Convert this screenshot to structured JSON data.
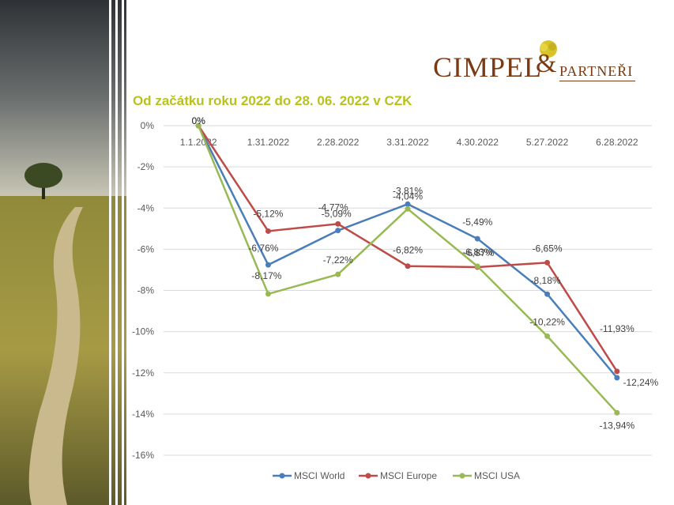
{
  "logo": {
    "brand": "CIMPEL",
    "amp": "&",
    "partners": "PARTNEŘI"
  },
  "colors": {
    "world": "#4a7ebb",
    "europe": "#be4b48",
    "usa": "#98b954",
    "title": "#b7c21b",
    "grid": "#d9d9d9",
    "brand": "#7a3b14"
  },
  "chart_data": {
    "type": "line",
    "title": "Od začátku roku 2022 do 28. 06. 2022 v CZK",
    "categories": [
      "1.1.2022",
      "1.31.2022",
      "2.28.2022",
      "3.31.2022",
      "4.30.2022",
      "5.27.2022",
      "6.28.2022"
    ],
    "ylim": [
      -16,
      0
    ],
    "yticks": [
      "0%",
      "-2%",
      "-4%",
      "-6%",
      "-8%",
      "-10%",
      "-12%",
      "-14%",
      "-16%"
    ],
    "grid": true,
    "legend": "bottom",
    "series": [
      {
        "name": "MSCI World",
        "values": [
          0,
          -6.76,
          -5.09,
          -3.81,
          -5.49,
          -8.18,
          -12.24
        ],
        "labels": [
          "0%",
          "-6,76%",
          "-5,09%",
          "-3,81%",
          "-5,49%",
          "-8,18%",
          "-12,24%"
        ]
      },
      {
        "name": "MSCI Europe",
        "values": [
          0,
          -5.12,
          -4.77,
          -6.82,
          -6.87,
          -6.65,
          -11.93
        ],
        "labels": [
          "0%",
          "-5,12%",
          "-4,77%",
          "-6,82%",
          "-6,87%",
          "-6,65%",
          "-11,93%"
        ]
      },
      {
        "name": "MSCI USA",
        "values": [
          0,
          -8.17,
          -7.22,
          -4.04,
          -6.83,
          -10.22,
          -13.94
        ],
        "labels": [
          "0%",
          "-8,17%",
          "-7,22%",
          "-4,04%",
          "-6,83%",
          "-10,22%",
          "-13,94%"
        ]
      }
    ]
  }
}
